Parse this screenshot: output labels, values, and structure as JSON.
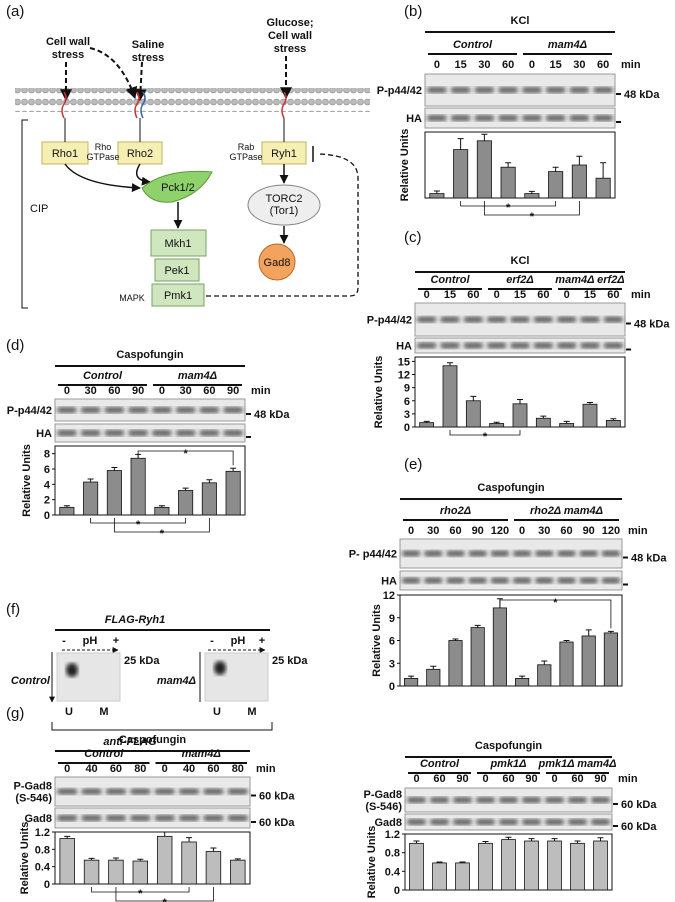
{
  "panel_a": {
    "label": "(a)",
    "stimuli": [
      [
        "Cell wall",
        "stress"
      ],
      [
        "Saline",
        "stress"
      ],
      [
        "Glucose;",
        "Cell wall",
        "stress"
      ]
    ],
    "rho1": "Rho1",
    "rho_gtpase": [
      "Rho",
      "GTPase"
    ],
    "rho2": "Rho2",
    "rab_gtpase": [
      "Rab",
      "GTPase"
    ],
    "ryh1": "Ryh1",
    "pck": "Pck1/2",
    "torc2": [
      "TORC2",
      "(Tor1)"
    ],
    "mkh1": "Mkh1",
    "pek1": "Pek1",
    "pmk1": "Pmk1",
    "mapk": "MAPK",
    "cip": "CIP",
    "gad8": "Gad8"
  },
  "panel_b": {
    "label": "(b)",
    "type": "bar",
    "title": "KCl",
    "groups": [
      "Control",
      "mam4Δ"
    ],
    "lanes": [
      "0",
      "15",
      "30",
      "60",
      "0",
      "15",
      "30",
      "60"
    ],
    "unit": "min",
    "rows": [
      [
        "P-p44/42"
      ],
      [
        "HA"
      ]
    ],
    "marker": "48 kDa",
    "ylabel": "Relative Units",
    "ylim": [
      0,
      15
    ],
    "values": [
      1,
      11,
      13,
      7,
      1,
      6,
      7.5,
      4.5
    ],
    "errors": [
      0.6,
      2.5,
      1.5,
      1,
      0.5,
      1,
      2,
      3.5
    ],
    "color": "#8c8c8c",
    "significance": "*"
  },
  "panel_c": {
    "label": "(c)",
    "type": "bar",
    "title": "KCl",
    "groups": [
      "Control",
      "erf2Δ",
      "mam4Δ erf2Δ"
    ],
    "lanes": [
      "0",
      "15",
      "60",
      "0",
      "15",
      "60",
      "0",
      "15",
      "60"
    ],
    "unit": "min",
    "rows": [
      [
        "P-p44/42"
      ],
      [
        "HA"
      ]
    ],
    "marker": "48 kDa",
    "ylabel": "Relative Units",
    "ylim": [
      0,
      16
    ],
    "yticks": [
      0,
      3,
      6,
      9,
      12,
      15
    ],
    "values": [
      1,
      14,
      6,
      0.8,
      5.3,
      2,
      0.8,
      5.2,
      1.5
    ],
    "errors": [
      0.3,
      0.7,
      1,
      0.3,
      1,
      0.5,
      0.5,
      0.4,
      0.4
    ],
    "color": "#8c8c8c",
    "significance": "*"
  },
  "panel_d": {
    "label": "(d)",
    "type": "bar",
    "title": "Caspofungin",
    "groups": [
      "Control",
      "mam4Δ"
    ],
    "lanes": [
      "0",
      "30",
      "60",
      "90",
      "0",
      "30",
      "60",
      "90"
    ],
    "unit": "min",
    "rows": [
      [
        "P-p44/42"
      ],
      [
        "HA"
      ]
    ],
    "marker": "48 kDa",
    "ylabel": "Relative Units",
    "ylim": [
      0,
      9
    ],
    "yticks": [
      0,
      2,
      4,
      6,
      8
    ],
    "values": [
      1,
      4.3,
      5.8,
      7.4,
      1,
      3.2,
      4.2,
      5.7
    ],
    "errors": [
      0.2,
      0.4,
      0.4,
      0.5,
      0.2,
      0.3,
      0.4,
      0.4
    ],
    "color": "#8c8c8c",
    "significance": "*"
  },
  "panel_e": {
    "label": "(e)",
    "type": "bar",
    "title": "Caspofungin",
    "groups": [
      "rho2Δ",
      "rho2Δ  mam4Δ"
    ],
    "lanes": [
      "0",
      "30",
      "60",
      "90",
      "120",
      "0",
      "30",
      "60",
      "90",
      "120"
    ],
    "unit": "min",
    "rows": [
      [
        "P- p44/42"
      ],
      [
        "HA"
      ]
    ],
    "marker": "48 kDa",
    "ylabel": "Relative Units",
    "ylim": [
      0,
      12
    ],
    "yticks": [
      0,
      3,
      6,
      9,
      12
    ],
    "values": [
      1,
      2.2,
      6,
      7.7,
      10.3,
      1,
      2.8,
      5.8,
      6.6,
      7
    ],
    "errors": [
      0.3,
      0.4,
      0.2,
      0.3,
      1.2,
      0.3,
      0.5,
      0.2,
      0.8,
      0.2
    ],
    "color": "#8c8c8c",
    "significance": "*"
  },
  "panel_f": {
    "label": "(f)",
    "title": "FLAG-Ryh1",
    "strains": [
      "Control",
      "mam4Δ"
    ],
    "ph": [
      "-",
      "pH",
      "+"
    ],
    "marker": "25 kDa",
    "spots": [
      "U",
      "M"
    ],
    "antibody": "anti-FLAG"
  },
  "panel_g": {
    "label": "(g)"
  },
  "panel_g_left": {
    "type": "bar",
    "title": "Caspofungin",
    "groups": [
      "Control",
      "mam4Δ"
    ],
    "lanes": [
      "0",
      "40",
      "60",
      "80",
      "0",
      "40",
      "60",
      "80"
    ],
    "unit": "min",
    "rows": [
      [
        "P-Gad8",
        "(S-546)"
      ],
      [
        "Gad8"
      ]
    ],
    "marker": "60 kDa",
    "ylabel": "Relative Units",
    "ylim": [
      0,
      1.2
    ],
    "yticks": [
      0,
      0.4,
      0.8,
      1.2
    ],
    "values": [
      1.05,
      0.55,
      0.55,
      0.53,
      1.1,
      0.97,
      0.75,
      0.55
    ],
    "errors": [
      0.05,
      0.04,
      0.05,
      0.04,
      0.1,
      0.1,
      0.08,
      0.03
    ],
    "color": "#bdbdbd",
    "significance": "*"
  },
  "panel_g_right": {
    "type": "bar",
    "title": "Caspofungin",
    "groups": [
      "Control",
      "pmk1Δ",
      "pmk1Δ mam4Δ"
    ],
    "lanes": [
      "0",
      "60",
      "90",
      "0",
      "60",
      "90",
      "0",
      "60",
      "90"
    ],
    "unit": "min",
    "rows": [
      [
        "P-Gad8",
        "(S-546)"
      ],
      [
        "Gad8"
      ]
    ],
    "marker": "60 kDa",
    "ylabel": "Relative Units",
    "ylim": [
      0,
      1.2
    ],
    "yticks": [
      0,
      0.4,
      0.8,
      1.2
    ],
    "values": [
      1,
      0.58,
      0.58,
      1,
      1.08,
      1.05,
      1.05,
      1,
      1.05
    ],
    "errors": [
      0.05,
      0.02,
      0.02,
      0.04,
      0.05,
      0.05,
      0.05,
      0.05,
      0.07
    ],
    "color": "#bdbdbd"
  }
}
